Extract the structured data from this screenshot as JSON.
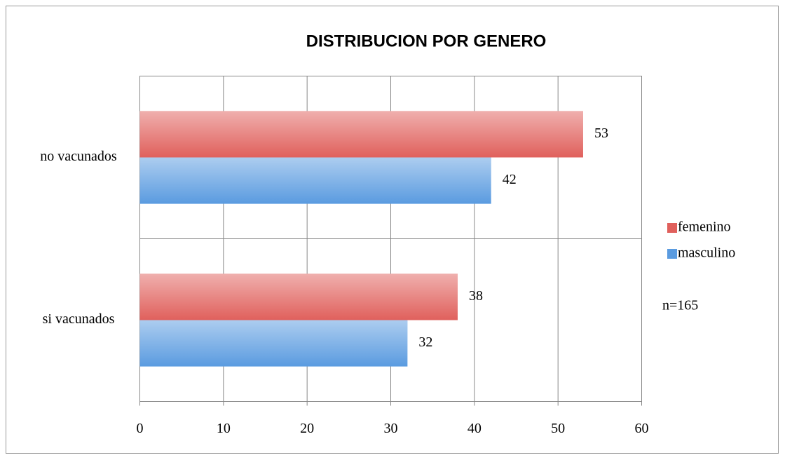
{
  "chart_data": {
    "type": "bar",
    "orientation": "horizontal",
    "title": "DISTRIBUCION POR GENERO",
    "categories": [
      "no vacunados",
      "si vacunados"
    ],
    "series": [
      {
        "name": "femenino",
        "color": "#e0605c",
        "values": [
          53,
          38
        ]
      },
      {
        "name": "masculino",
        "color": "#5a9be0",
        "values": [
          42,
          32
        ]
      }
    ],
    "xlim": [
      0,
      60
    ],
    "xticks": [
      0,
      10,
      20,
      30,
      40,
      50,
      60
    ],
    "grid": true,
    "legend": "right",
    "annotation": "n=165"
  }
}
